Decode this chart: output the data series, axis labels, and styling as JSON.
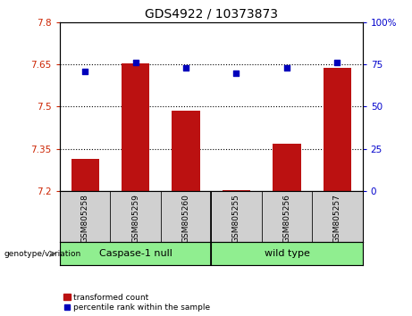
{
  "title": "GDS4922 / 10373873",
  "samples": [
    "GSM805258",
    "GSM805259",
    "GSM805260",
    "GSM805255",
    "GSM805256",
    "GSM805257"
  ],
  "bar_values": [
    7.315,
    7.652,
    7.485,
    7.205,
    7.37,
    7.638
  ],
  "percentile_values": [
    71,
    76,
    73,
    70,
    73,
    76
  ],
  "ylim_left": [
    7.2,
    7.8
  ],
  "ylim_right": [
    0,
    100
  ],
  "yticks_left": [
    7.2,
    7.35,
    7.5,
    7.65,
    7.8
  ],
  "yticks_right": [
    0,
    25,
    50,
    75,
    100
  ],
  "ytick_labels_left": [
    "7.2",
    "7.35",
    "7.5",
    "7.65",
    "7.8"
  ],
  "ytick_labels_right": [
    "0",
    "25",
    "50",
    "75",
    "100%"
  ],
  "bar_color": "#bb1111",
  "dot_color": "#0000bb",
  "bar_width": 0.55,
  "group_labels": [
    "Caspase-1 null",
    "wild type"
  ],
  "group_color": "#90ee90",
  "group_label_left": "genotype/variation",
  "legend_bar_label": "transformed count",
  "legend_dot_label": "percentile rank within the sample",
  "hlines": [
    7.35,
    7.5,
    7.65
  ],
  "title_fontsize": 10,
  "tick_fontsize": 7.5,
  "label_fontsize": 6.5,
  "left_tick_color": "#cc2200",
  "right_tick_color": "#0000cc"
}
